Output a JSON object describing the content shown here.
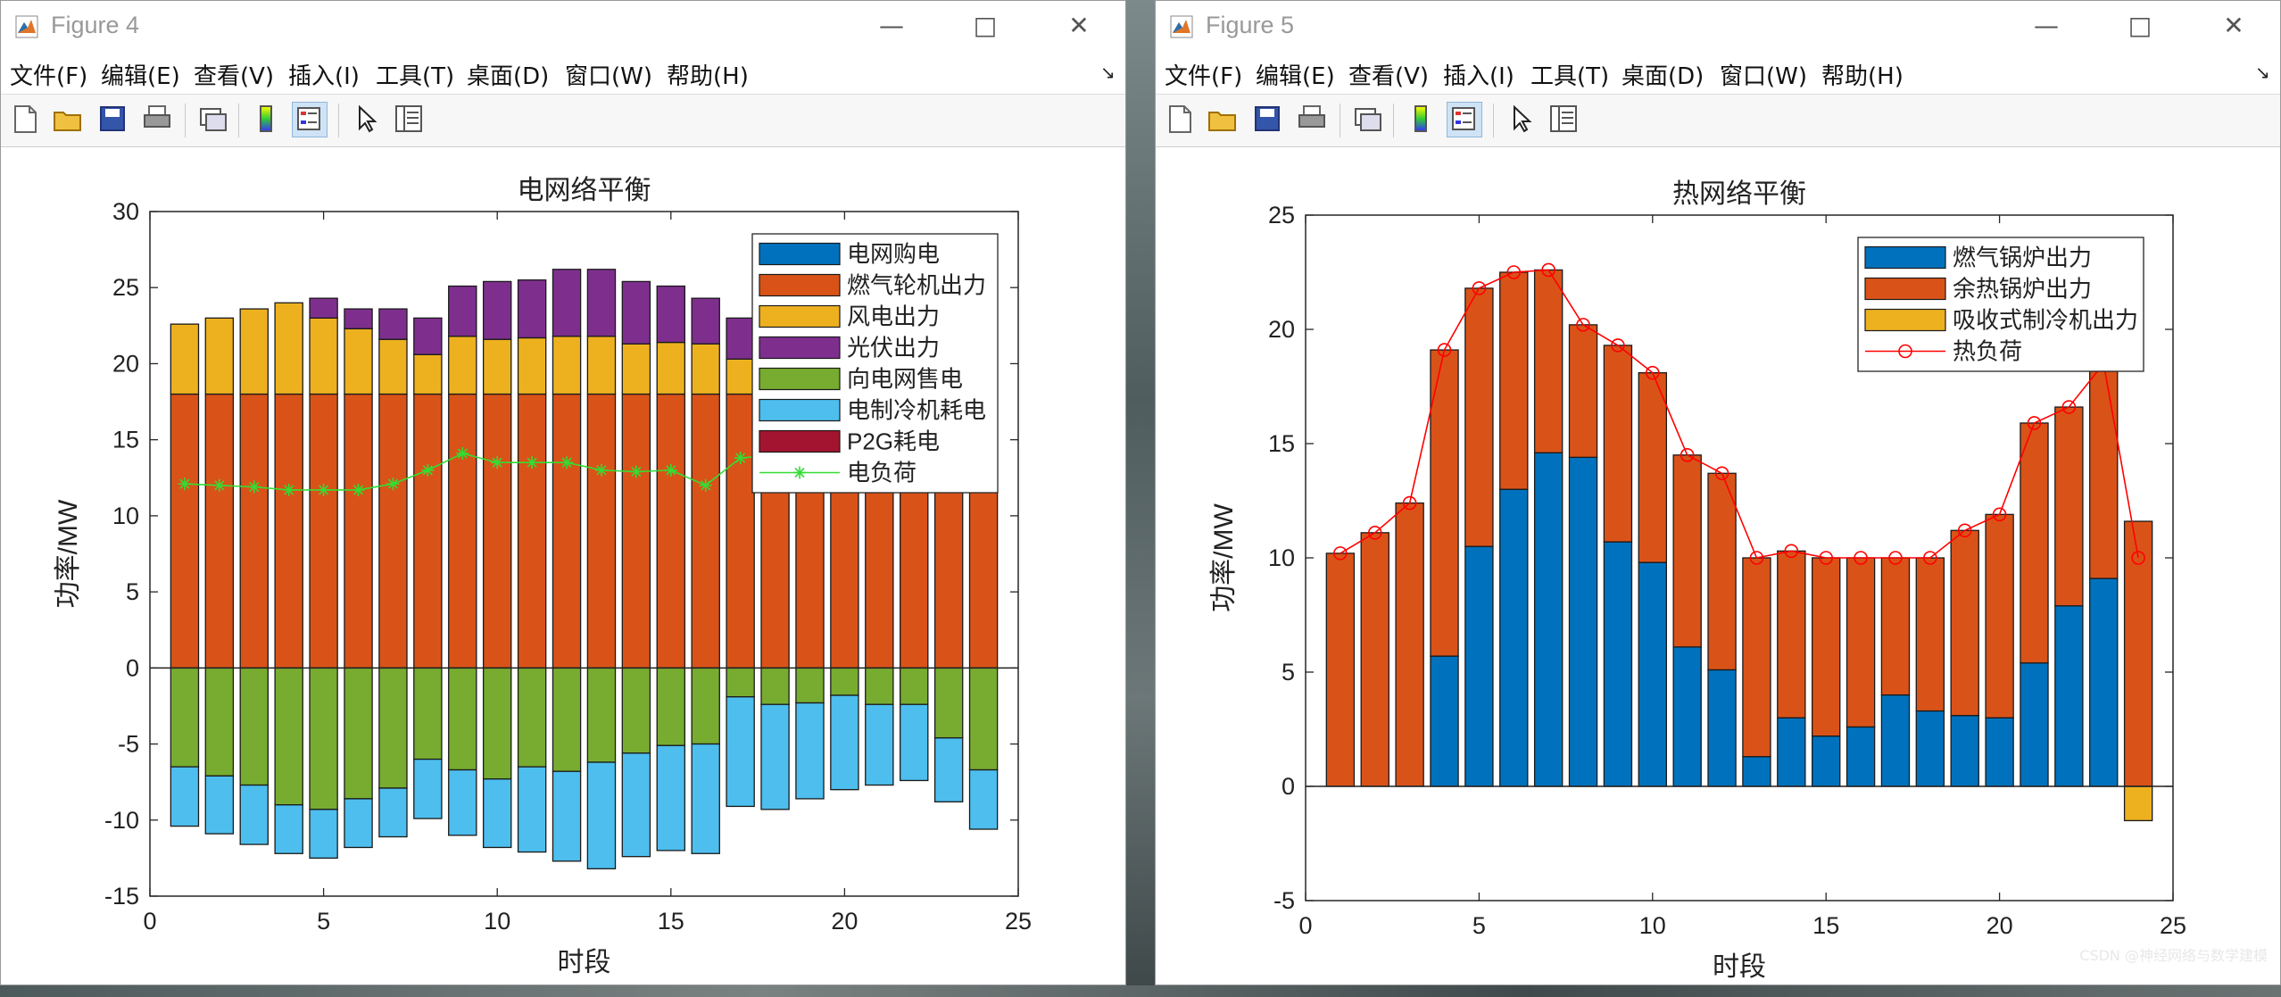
{
  "figure4": {
    "window_title": "Figure 4",
    "menu": [
      "文件(F)",
      "编辑(E)",
      "查看(V)",
      "插入(I)",
      "工具(T)",
      "桌面(D)",
      "窗口(W)",
      "帮助(H)"
    ],
    "menu_arrow": "↘",
    "toolbar": [
      "new-file-icon",
      "open-folder-icon",
      "save-icon",
      "print-icon",
      "link-plot-icon",
      "colorbar-icon",
      "legend-icon",
      "pointer-icon",
      "property-inspector-icon"
    ],
    "chart_data": {
      "type": "bar",
      "stacked": true,
      "title": "电网络平衡",
      "xlabel": "时段",
      "ylabel": "功率/MW",
      "xlim": [
        0,
        25
      ],
      "ylim": [
        -15,
        30
      ],
      "xticks": [
        0,
        5,
        10,
        15,
        20,
        25
      ],
      "yticks": [
        -15,
        -10,
        -5,
        0,
        5,
        10,
        15,
        20,
        25,
        30
      ],
      "x": [
        1,
        2,
        3,
        4,
        5,
        6,
        7,
        8,
        9,
        10,
        11,
        12,
        13,
        14,
        15,
        16,
        17,
        18,
        19,
        20,
        21,
        22,
        23,
        24
      ],
      "legend_position": "top-right",
      "series": [
        {
          "name": "电网购电",
          "color": "#0072BD",
          "values": [
            0,
            0,
            0,
            0,
            0,
            0,
            0,
            0,
            0,
            0,
            0,
            0,
            0,
            0,
            0,
            0,
            0,
            0,
            0,
            0,
            0,
            0,
            0,
            0
          ]
        },
        {
          "name": "燃气轮机出力",
          "color": "#D95319",
          "values": [
            18,
            18,
            18,
            18,
            18,
            18,
            18,
            18,
            18,
            18,
            18,
            18,
            18,
            18,
            18,
            18,
            18,
            18,
            18,
            18,
            18,
            18,
            18,
            18
          ]
        },
        {
          "name": "风电出力",
          "color": "#EDB120",
          "values": [
            4.6,
            5.0,
            5.6,
            6.0,
            5.0,
            4.3,
            3.6,
            2.6,
            3.8,
            3.6,
            3.7,
            3.8,
            3.8,
            3.3,
            3.4,
            3.3,
            2.3,
            0,
            0,
            0,
            0,
            0,
            0,
            0
          ]
        },
        {
          "name": "光伏出力",
          "color": "#7E2F8E",
          "values": [
            0,
            0,
            0,
            0,
            1.3,
            1.3,
            2.0,
            2.4,
            3.3,
            3.8,
            3.8,
            4.4,
            4.4,
            4.1,
            3.7,
            3.0,
            2.7,
            0,
            0,
            0,
            0,
            0,
            0,
            0
          ]
        },
        {
          "name": "向电网售电",
          "color": "#77AC30",
          "values": [
            -6.5,
            -7.1,
            -7.7,
            -9.0,
            -9.3,
            -8.6,
            -7.9,
            -6.0,
            -6.7,
            -7.3,
            -6.5,
            -6.8,
            -6.2,
            -5.6,
            -5.1,
            -5.0,
            -1.9,
            -2.4,
            -2.3,
            -1.8,
            -2.4,
            -2.4,
            -4.6,
            -6.7
          ]
        },
        {
          "name": "电制冷机耗电",
          "color": "#4DBEEE",
          "values": [
            -3.9,
            -3.8,
            -3.9,
            -3.2,
            -3.2,
            -3.2,
            -3.2,
            -3.9,
            -4.3,
            -4.5,
            -5.6,
            -5.9,
            -7.0,
            -6.8,
            -6.9,
            -7.2,
            -7.2,
            -6.9,
            -6.3,
            -6.2,
            -5.3,
            -5.0,
            -4.2,
            -3.9
          ]
        },
        {
          "name": "P2G耗电",
          "color": "#A2142F",
          "values": [
            0,
            0,
            0,
            0,
            0,
            0,
            0,
            0,
            0,
            0,
            0,
            0,
            0,
            0,
            0,
            0,
            0,
            0,
            0,
            0,
            0,
            0,
            0,
            0
          ]
        }
      ],
      "line": {
        "name": "电负荷",
        "color": "#33DD33",
        "marker": "*",
        "values": [
          12.1,
          12.0,
          11.9,
          11.7,
          11.7,
          11.7,
          12.1,
          13.0,
          14.1,
          13.5,
          13.5,
          13.5,
          13.0,
          12.9,
          13.0,
          12.0,
          13.8,
          14.0,
          14.0,
          13.9,
          13.6,
          13.4,
          13.0,
          12.8
        ]
      }
    }
  },
  "figure5": {
    "window_title": "Figure 5",
    "menu": [
      "文件(F)",
      "编辑(E)",
      "查看(V)",
      "插入(I)",
      "工具(T)",
      "桌面(D)",
      "窗口(W)",
      "帮助(H)"
    ],
    "menu_arrow": "↘",
    "toolbar": [
      "new-file-icon",
      "open-folder-icon",
      "save-icon",
      "print-icon",
      "link-plot-icon",
      "colorbar-icon",
      "legend-icon",
      "pointer-icon",
      "property-inspector-icon"
    ],
    "chart_data": {
      "type": "bar",
      "stacked": true,
      "title": "热网络平衡",
      "xlabel": "时段",
      "ylabel": "功率/MW",
      "xlim": [
        0,
        25
      ],
      "ylim": [
        -5,
        25
      ],
      "xticks": [
        0,
        5,
        10,
        15,
        20,
        25
      ],
      "yticks": [
        -5,
        0,
        5,
        10,
        15,
        20,
        25
      ],
      "x": [
        1,
        2,
        3,
        4,
        5,
        6,
        7,
        8,
        9,
        10,
        11,
        12,
        13,
        14,
        15,
        16,
        17,
        18,
        19,
        20,
        21,
        22,
        23,
        24
      ],
      "legend_position": "top-right",
      "series": [
        {
          "name": "燃气锅炉出力",
          "color": "#0072BD",
          "values": [
            0,
            0,
            0,
            5.7,
            10.5,
            13.0,
            14.6,
            14.4,
            10.7,
            9.8,
            6.1,
            5.1,
            1.3,
            3.0,
            2.2,
            2.6,
            4.0,
            3.3,
            3.1,
            3.0,
            5.4,
            7.9,
            9.1,
            0
          ]
        },
        {
          "name": "余热锅炉出力",
          "color": "#D95319",
          "values": [
            10.2,
            11.1,
            12.4,
            13.4,
            11.3,
            9.5,
            8.0,
            5.8,
            8.6,
            8.3,
            8.4,
            8.6,
            8.7,
            7.3,
            7.8,
            7.4,
            6.0,
            6.7,
            8.1,
            8.9,
            10.5,
            8.7,
            9.4,
            11.6
          ]
        },
        {
          "name": "吸收式制冷机出力",
          "color": "#EDB120",
          "values": [
            0,
            0,
            0,
            0,
            0,
            0,
            0,
            0,
            0,
            0,
            0,
            0,
            0,
            0,
            0,
            0,
            0,
            0,
            0,
            0,
            0,
            0,
            0,
            -1.5
          ]
        }
      ],
      "line": {
        "name": "热负荷",
        "color": "#FF0000",
        "marker": "o",
        "values": [
          10.2,
          11.1,
          12.4,
          19.1,
          21.8,
          22.5,
          22.6,
          20.2,
          19.3,
          18.1,
          14.5,
          13.7,
          10.0,
          10.3,
          10.0,
          10.0,
          10.0,
          10.0,
          11.2,
          11.9,
          15.9,
          16.6,
          18.5,
          10.0
        ]
      }
    }
  },
  "watermark": "CSDN @神经网络与数学建模"
}
